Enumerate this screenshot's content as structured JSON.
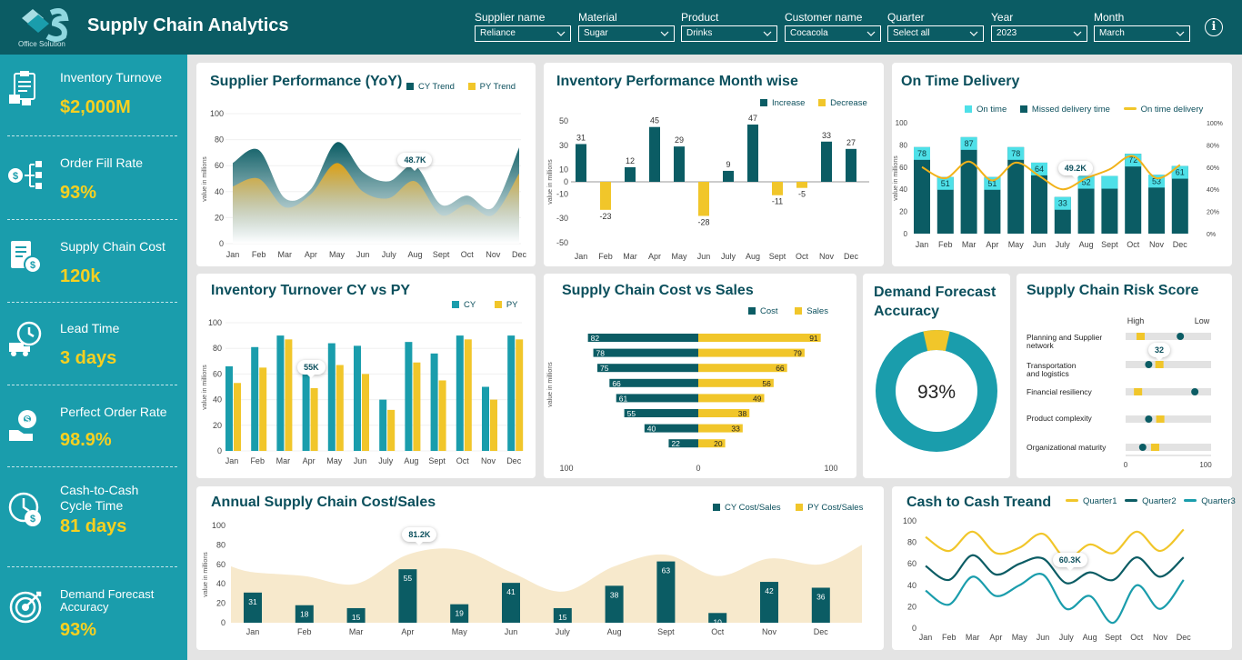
{
  "header": {
    "title": "Supply Chain Analytics",
    "logo_text": "Office Solution",
    "filters": [
      {
        "label": "Supplier name",
        "value": "Reliance"
      },
      {
        "label": "Material",
        "value": "Sugar"
      },
      {
        "label": "Product",
        "value": "Drinks"
      },
      {
        "label": "Customer name",
        "value": "Cocacola"
      },
      {
        "label": "Quarter",
        "value": "Select all"
      },
      {
        "label": "Year",
        "value": "2023"
      },
      {
        "label": "Month",
        "value": "March"
      }
    ],
    "info_glyph": "i"
  },
  "sidebar": {
    "kpis": [
      {
        "label": "Inventory Turnove",
        "value": "$2,000M",
        "icon": "clipboard-boxes-icon"
      },
      {
        "label": "Order Fill Rate",
        "value": "93%",
        "icon": "dollar-flow-icon"
      },
      {
        "label": "Supply Chain Cost",
        "value": "120k",
        "icon": "invoice-cost-icon"
      },
      {
        "label": "Lead Time",
        "value": "3 days",
        "icon": "clock-truck-icon"
      },
      {
        "label": "Perfect Order Rate",
        "value": "98.9%",
        "icon": "gear-hand-icon"
      },
      {
        "label": "Cash-to-Cash Cycle Time",
        "value": "81 days",
        "icon": "clock-dollar-icon"
      },
      {
        "label": "Demand Forecast Accuracy",
        "value": "93%",
        "icon": "target-icon"
      }
    ]
  },
  "colors": {
    "teal_dark": "#0b5c64",
    "teal": "#1a9dac",
    "yellow": "#f1c62a",
    "cyan": "#4ee0e8",
    "bg": "#e4e4e4"
  },
  "months": [
    "Jan",
    "Feb",
    "Mar",
    "Apr",
    "May",
    "Jun",
    "July",
    "Aug",
    "Sept",
    "Oct",
    "Nov",
    "Dec"
  ],
  "months_cost": [
    "Jan",
    "Feb",
    "Mar",
    "Apr",
    "May",
    "Jun",
    "July",
    "Aug",
    "Sept",
    "Oct",
    "Nov",
    "Dec"
  ],
  "months_otd": [
    "Jan",
    "Feb",
    "Mar",
    "Apr",
    "May",
    "Jun",
    "July",
    "Aug",
    "Sept",
    "Oct",
    "Nov",
    "Dec"
  ],
  "chart_data": [
    {
      "id": "supplier",
      "type": "area",
      "title": "Supplier Performance (YoY)",
      "ylabel": "value in millions",
      "ylim": [
        0,
        100
      ],
      "yticks": [
        0,
        20,
        40,
        60,
        80,
        100
      ],
      "series": [
        {
          "name": "CY Trend",
          "values": [
            62,
            72,
            35,
            42,
            78,
            55,
            48,
            60,
            30,
            37,
            28,
            74
          ]
        },
        {
          "name": "PY Trend",
          "values": [
            44,
            50,
            28,
            38,
            62,
            40,
            35,
            48,
            22,
            30,
            22,
            54
          ]
        }
      ],
      "annotation": "48.7K"
    },
    {
      "id": "inventory_month",
      "type": "bar",
      "title": "Inventory Performance Month wise",
      "ylim": [
        -50,
        50
      ],
      "yticks": [
        -50,
        -30,
        -10,
        10,
        30,
        50
      ],
      "yticklabels": [
        "-50",
        "-30",
        "-10",
        "10",
        "30",
        "50"
      ],
      "yticks_extra": [
        -40,
        -20,
        0,
        20,
        40
      ],
      "yticklabels_extra": [
        "-40",
        "-20",
        "0",
        "20",
        "40"
      ],
      "series": [
        {
          "name": "Increase"
        },
        {
          "name": "Decrease"
        }
      ],
      "values": [
        31,
        -23,
        12,
        45,
        29,
        -28,
        9,
        47,
        -11,
        -5,
        33,
        27
      ],
      "labels": [
        "31",
        "-23",
        "12",
        "45",
        "29",
        "-28",
        "9",
        "47",
        "-11",
        "-5",
        "33",
        "27"
      ]
    },
    {
      "id": "otd",
      "type": "bar",
      "title": "On Time Delivery",
      "ylabel": "value in millions",
      "ylim": [
        0,
        100
      ],
      "yticks": [
        0,
        20,
        40,
        60,
        80,
        100
      ],
      "y2ticks": [
        "0%",
        "20%",
        "40%",
        "60%",
        "80%",
        "100%"
      ],
      "series": [
        {
          "name": "On time"
        },
        {
          "name": "Missed delivery time"
        },
        {
          "name": "On time delivery"
        }
      ],
      "values": [
        78,
        51,
        87,
        51,
        78,
        64,
        33,
        52,
        52,
        72,
        53,
        61
      ],
      "labels": [
        "78",
        "51",
        "87",
        "51",
        "78",
        "64",
        "33",
        "52",
        "",
        "72",
        "53",
        "61"
      ],
      "ontime_pct": [
        60,
        50,
        65,
        48,
        64,
        52,
        40,
        50,
        58,
        70,
        50,
        62
      ],
      "annotation": "49.2K"
    },
    {
      "id": "turnover",
      "type": "bar",
      "title": "Inventory Turnover CY vs PY",
      "ylabel": "value in millions",
      "ylim": [
        0,
        100
      ],
      "yticks": [
        0,
        20,
        40,
        60,
        80,
        100
      ],
      "series": [
        {
          "name": "CY",
          "values": [
            66,
            81,
            90,
            64,
            84,
            82,
            40,
            85,
            76,
            90,
            50,
            90
          ]
        },
        {
          "name": "PY",
          "values": [
            53,
            65,
            87,
            49,
            67,
            60,
            32,
            69,
            55,
            87,
            40,
            87
          ]
        }
      ],
      "annotation": "55K"
    },
    {
      "id": "cost_sales",
      "type": "bar",
      "title": "Supply Chain Cost vs Sales",
      "ylabel": "value in millions",
      "xticks": [
        "100",
        "0",
        "100"
      ],
      "series": [
        {
          "name": "Cost",
          "values": [
            82,
            78,
            75,
            66,
            61,
            55,
            40,
            22
          ]
        },
        {
          "name": "Sales",
          "values": [
            91,
            79,
            66,
            56,
            49,
            38,
            33,
            20
          ]
        }
      ]
    },
    {
      "id": "forecast",
      "type": "pie",
      "title": "Demand Forecast Accuracy",
      "value": 93,
      "label": "93%"
    },
    {
      "id": "risk",
      "type": "scatter",
      "title": "Supply Chain Risk Score",
      "high_label": "High",
      "low_label": "Low",
      "xticks": [
        "0",
        "100"
      ],
      "items": [
        {
          "name": "Planning and Supplier network",
          "dot": 64,
          "bar": 17
        },
        {
          "name": "Transportation and logistics",
          "dot": 27,
          "bar": 39
        },
        {
          "name": "Financial resiliency",
          "dot": 81,
          "bar": 14
        },
        {
          "name": "Product complexity",
          "dot": 27,
          "bar": 40
        },
        {
          "name": "Organizational maturity",
          "dot": 20,
          "bar": 34
        }
      ],
      "annotation": "32"
    },
    {
      "id": "annual",
      "type": "bar",
      "title": "Annual Supply Chain Cost/Sales",
      "ylabel": "value in millions",
      "ylim": [
        0,
        100
      ],
      "yticks": [
        0,
        20,
        40,
        60,
        80,
        100
      ],
      "series": [
        {
          "name": "CY Cost/Sales",
          "values": [
            31,
            18,
            15,
            55,
            19,
            41,
            15,
            38,
            63,
            10,
            42,
            36
          ]
        },
        {
          "name": "PY Cost/Sales",
          "values": [
            52,
            48,
            40,
            70,
            75,
            52,
            32,
            58,
            70,
            48,
            66,
            60
          ]
        }
      ],
      "annotation": "81.2K"
    },
    {
      "id": "cash",
      "type": "line",
      "title": "Cash to Cash Treand",
      "ylim": [
        0,
        100
      ],
      "yticks": [
        0,
        20,
        40,
        60,
        80,
        100
      ],
      "series": [
        {
          "name": "Quarter1",
          "values": [
            85,
            72,
            90,
            70,
            75,
            88,
            65,
            78,
            70,
            90,
            72,
            92
          ]
        },
        {
          "name": "Quarter2",
          "values": [
            58,
            45,
            68,
            50,
            60,
            65,
            42,
            52,
            45,
            66,
            48,
            66
          ]
        },
        {
          "name": "Quarter3",
          "values": [
            35,
            22,
            48,
            30,
            40,
            50,
            18,
            30,
            5,
            40,
            18,
            45
          ]
        }
      ],
      "annotation": "60.3K"
    }
  ]
}
